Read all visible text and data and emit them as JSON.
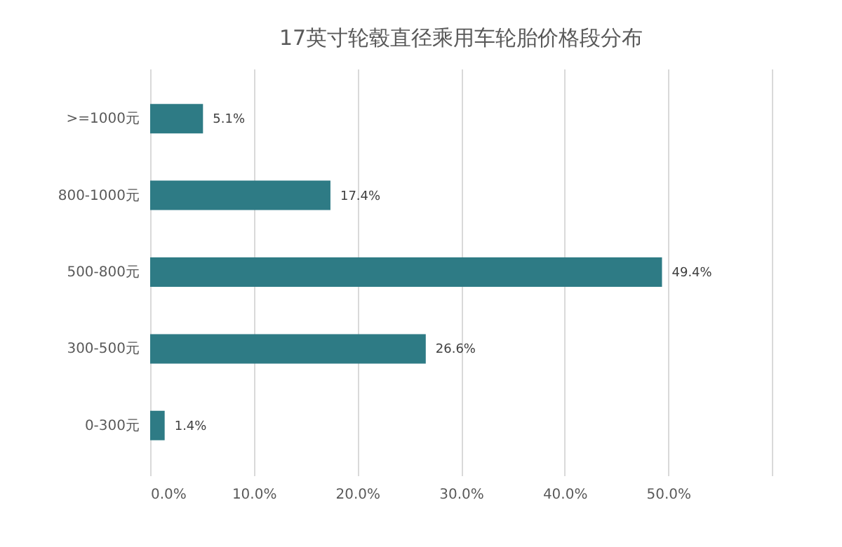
{
  "chart_data": {
    "type": "bar",
    "orientation": "horizontal",
    "title": "17英寸轮毂直径乘用车轮胎价格段分布",
    "categories": [
      ">=1000元",
      "800-1000元",
      "500-800元",
      "300-500元",
      "0-300元"
    ],
    "values": [
      5.1,
      17.4,
      49.4,
      26.6,
      1.4
    ],
    "value_labels": [
      "5.1%",
      "17.4%",
      "49.4%",
      "26.6%",
      "1.4%"
    ],
    "color": "#2e7b85",
    "xlim": [
      0,
      60
    ],
    "xticks": [
      {
        "value": 0,
        "label": "0.0%"
      },
      {
        "value": 10,
        "label": "10.0%"
      },
      {
        "value": 20,
        "label": "20.0%"
      },
      {
        "value": 30,
        "label": "30.0%"
      },
      {
        "value": 40,
        "label": "40.0%"
      },
      {
        "value": 50,
        "label": "50.0%"
      },
      {
        "value": 60,
        "label": null
      }
    ],
    "grid": "x"
  }
}
